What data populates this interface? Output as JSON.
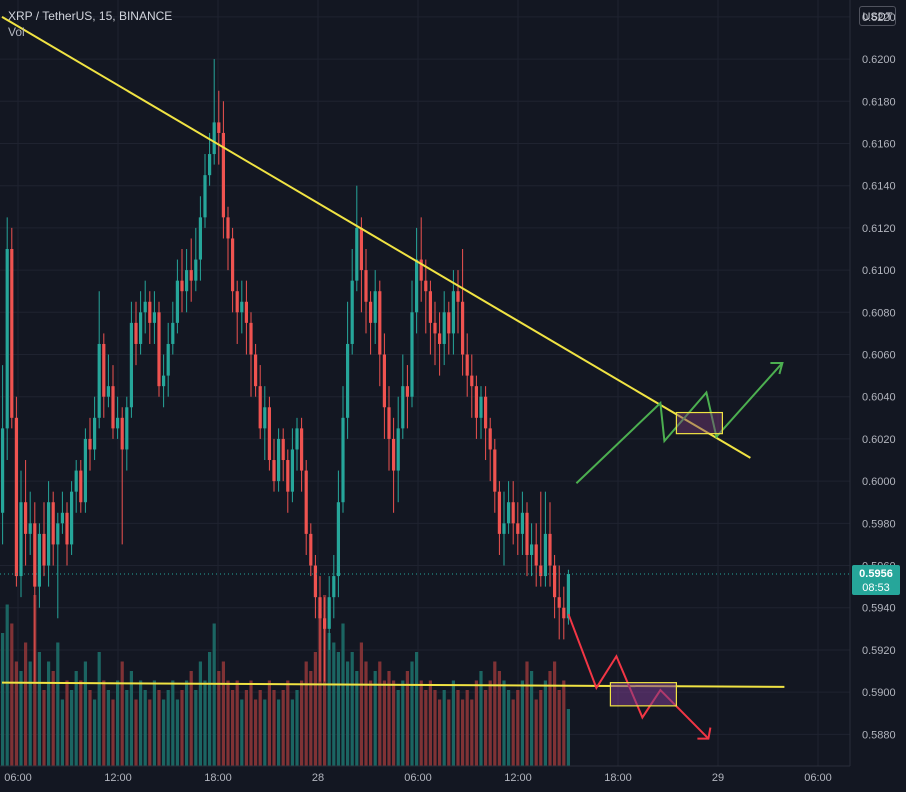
{
  "header": {
    "symbol": "XRP / TetherUS, 15, BINANCE",
    "indicator": "Vol"
  },
  "currency_label": "USDT",
  "current_price": {
    "value": "0.5956",
    "countdown": "08:53",
    "color": "#26a69a"
  },
  "colors": {
    "background": "#131722",
    "grid": "#1f2330",
    "up": "#26a69a",
    "down": "#ef5350",
    "up_vol": "#1d6e69",
    "down_vol": "#8c3537",
    "trendline": "#f0e343",
    "bull_path": "#4caf50",
    "bear_path": "#f23645",
    "axis_text": "#b2b5be"
  },
  "chart_data": {
    "type": "candlestick",
    "interval": "15",
    "y_axis": {
      "position": "right",
      "ylim": [
        0.5865,
        0.6228
      ],
      "ticks": [
        "0.5880",
        "0.5900",
        "0.5920",
        "0.5940",
        "0.5960",
        "0.5980",
        "0.6000",
        "0.6020",
        "0.6040",
        "0.6060",
        "0.6080",
        "0.6100",
        "0.6120",
        "0.6140",
        "0.6160",
        "0.6180",
        "0.6200",
        "0.6220"
      ]
    },
    "x_axis": {
      "tick_labels": [
        "06:00",
        "12:00",
        "18:00",
        "28",
        "06:00",
        "12:00",
        "18:00",
        "29",
        "06:00"
      ],
      "tick_hours": [
        0,
        6,
        12,
        18,
        24,
        30,
        36,
        42,
        48
      ]
    },
    "grid": true,
    "candles": [
      [
        0.6,
        0.5985,
        0.6165,
        0.597
      ],
      [
        0.5985,
        0.6025,
        0.6055,
        0.597
      ],
      [
        0.6025,
        0.611,
        0.6125,
        0.601
      ],
      [
        0.611,
        0.603,
        0.612,
        0.6025
      ],
      [
        0.603,
        0.5955,
        0.604,
        0.595
      ],
      [
        0.5955,
        0.599,
        0.6005,
        0.5945
      ],
      [
        0.599,
        0.5975,
        0.601,
        0.596
      ],
      [
        0.5975,
        0.598,
        0.5995,
        0.5965
      ],
      [
        0.598,
        0.595,
        0.599,
        0.5905
      ],
      [
        0.595,
        0.5975,
        0.598,
        0.594
      ],
      [
        0.5975,
        0.596,
        0.599,
        0.5955
      ],
      [
        0.596,
        0.599,
        0.6,
        0.595
      ],
      [
        0.599,
        0.597,
        0.5995,
        0.596
      ],
      [
        0.597,
        0.598,
        0.5985,
        0.5935
      ],
      [
        0.598,
        0.5985,
        0.5995,
        0.5975
      ],
      [
        0.5985,
        0.597,
        0.599,
        0.596
      ],
      [
        0.597,
        0.5995,
        0.6,
        0.5965
      ],
      [
        0.5995,
        0.6005,
        0.601,
        0.5985
      ],
      [
        0.6005,
        0.599,
        0.601,
        0.5985
      ],
      [
        0.599,
        0.602,
        0.6025,
        0.5985
      ],
      [
        0.602,
        0.6015,
        0.603,
        0.6005
      ],
      [
        0.6015,
        0.603,
        0.604,
        0.601
      ],
      [
        0.603,
        0.6065,
        0.609,
        0.6025
      ],
      [
        0.6065,
        0.604,
        0.607,
        0.603
      ],
      [
        0.604,
        0.6045,
        0.606,
        0.6035
      ],
      [
        0.6045,
        0.6025,
        0.6055,
        0.602
      ],
      [
        0.6025,
        0.603,
        0.604,
        0.602
      ],
      [
        0.603,
        0.6015,
        0.6035,
        0.597
      ],
      [
        0.6015,
        0.6035,
        0.604,
        0.6005
      ],
      [
        0.6035,
        0.6075,
        0.6085,
        0.603
      ],
      [
        0.6075,
        0.6065,
        0.6085,
        0.6055
      ],
      [
        0.6065,
        0.608,
        0.609,
        0.606
      ],
      [
        0.608,
        0.6085,
        0.6095,
        0.607
      ],
      [
        0.6085,
        0.6075,
        0.609,
        0.6065
      ],
      [
        0.6075,
        0.608,
        0.609,
        0.6065
      ],
      [
        0.608,
        0.6045,
        0.6085,
        0.604
      ],
      [
        0.6045,
        0.605,
        0.606,
        0.6035
      ],
      [
        0.605,
        0.6065,
        0.6075,
        0.604
      ],
      [
        0.6065,
        0.6075,
        0.6085,
        0.606
      ],
      [
        0.6075,
        0.6095,
        0.6105,
        0.607
      ],
      [
        0.6095,
        0.609,
        0.611,
        0.608
      ],
      [
        0.609,
        0.61,
        0.611,
        0.608
      ],
      [
        0.61,
        0.6095,
        0.6115,
        0.6085
      ],
      [
        0.6095,
        0.6105,
        0.612,
        0.609
      ],
      [
        0.6105,
        0.6125,
        0.6135,
        0.6095
      ],
      [
        0.6125,
        0.6145,
        0.6155,
        0.612
      ],
      [
        0.6145,
        0.6155,
        0.6165,
        0.614
      ],
      [
        0.6155,
        0.617,
        0.62,
        0.615
      ],
      [
        0.617,
        0.6165,
        0.6185,
        0.615
      ],
      [
        0.6165,
        0.6125,
        0.618,
        0.6115
      ],
      [
        0.6125,
        0.6115,
        0.613,
        0.61
      ],
      [
        0.6115,
        0.609,
        0.612,
        0.608
      ],
      [
        0.609,
        0.608,
        0.6095,
        0.6065
      ],
      [
        0.608,
        0.6085,
        0.6095,
        0.607
      ],
      [
        0.6085,
        0.6075,
        0.6095,
        0.606
      ],
      [
        0.6075,
        0.606,
        0.608,
        0.604
      ],
      [
        0.606,
        0.6045,
        0.6065,
        0.604
      ],
      [
        0.6045,
        0.6025,
        0.6055,
        0.602
      ],
      [
        0.6025,
        0.6035,
        0.6045,
        0.601
      ],
      [
        0.6035,
        0.601,
        0.604,
        0.6005
      ],
      [
        0.601,
        0.6,
        0.602,
        0.5995
      ],
      [
        0.6,
        0.602,
        0.6025,
        0.5995
      ],
      [
        0.602,
        0.601,
        0.6025,
        0.6
      ],
      [
        0.601,
        0.5995,
        0.6015,
        0.5985
      ],
      [
        0.5995,
        0.6015,
        0.6025,
        0.599
      ],
      [
        0.6015,
        0.6025,
        0.603,
        0.6005
      ],
      [
        0.6025,
        0.6005,
        0.603,
        0.5995
      ],
      [
        0.6005,
        0.5975,
        0.601,
        0.5965
      ],
      [
        0.5975,
        0.596,
        0.598,
        0.5955
      ],
      [
        0.596,
        0.5945,
        0.5965,
        0.5935
      ],
      [
        0.5945,
        0.5935,
        0.5955,
        0.5905
      ],
      [
        0.5935,
        0.593,
        0.5945,
        0.5905
      ],
      [
        0.593,
        0.5945,
        0.5955,
        0.592
      ],
      [
        0.5945,
        0.5955,
        0.5965,
        0.5935
      ],
      [
        0.5955,
        0.599,
        0.6005,
        0.5945
      ],
      [
        0.599,
        0.603,
        0.6045,
        0.5985
      ],
      [
        0.603,
        0.6065,
        0.6085,
        0.602
      ],
      [
        0.6065,
        0.6095,
        0.611,
        0.606
      ],
      [
        0.6095,
        0.612,
        0.614,
        0.609
      ],
      [
        0.612,
        0.61,
        0.6125,
        0.608
      ],
      [
        0.61,
        0.6085,
        0.611,
        0.607
      ],
      [
        0.6085,
        0.6075,
        0.609,
        0.606
      ],
      [
        0.6075,
        0.609,
        0.61,
        0.6065
      ],
      [
        0.609,
        0.606,
        0.6095,
        0.6045
      ],
      [
        0.606,
        0.6035,
        0.607,
        0.602
      ],
      [
        0.6035,
        0.602,
        0.6045,
        0.6005
      ],
      [
        0.602,
        0.6005,
        0.603,
        0.5985
      ],
      [
        0.6005,
        0.6025,
        0.604,
        0.599
      ],
      [
        0.6025,
        0.6045,
        0.606,
        0.602
      ],
      [
        0.6045,
        0.604,
        0.6055,
        0.6025
      ],
      [
        0.604,
        0.608,
        0.6095,
        0.6035
      ],
      [
        0.608,
        0.6105,
        0.612,
        0.607
      ],
      [
        0.6105,
        0.6095,
        0.6125,
        0.6085
      ],
      [
        0.6095,
        0.609,
        0.6105,
        0.607
      ],
      [
        0.609,
        0.6075,
        0.6095,
        0.606
      ],
      [
        0.6075,
        0.607,
        0.6085,
        0.6055
      ],
      [
        0.607,
        0.6065,
        0.608,
        0.605
      ],
      [
        0.6065,
        0.608,
        0.609,
        0.6055
      ],
      [
        0.608,
        0.607,
        0.6085,
        0.606
      ],
      [
        0.607,
        0.609,
        0.61,
        0.606
      ],
      [
        0.609,
        0.6085,
        0.61,
        0.607
      ],
      [
        0.6085,
        0.606,
        0.611,
        0.605
      ],
      [
        0.606,
        0.605,
        0.607,
        0.604
      ],
      [
        0.605,
        0.6045,
        0.606,
        0.603
      ],
      [
        0.6045,
        0.603,
        0.605,
        0.602
      ],
      [
        0.603,
        0.604,
        0.6045,
        0.602
      ],
      [
        0.604,
        0.6025,
        0.6045,
        0.601
      ],
      [
        0.6025,
        0.6015,
        0.603,
        0.6
      ],
      [
        0.6015,
        0.5995,
        0.602,
        0.5985
      ],
      [
        0.5995,
        0.5975,
        0.6,
        0.5965
      ],
      [
        0.5975,
        0.598,
        0.5995,
        0.596
      ],
      [
        0.598,
        0.599,
        0.6,
        0.5975
      ],
      [
        0.599,
        0.598,
        0.6,
        0.597
      ],
      [
        0.598,
        0.5975,
        0.599,
        0.5965
      ],
      [
        0.5975,
        0.5985,
        0.5995,
        0.5965
      ],
      [
        0.5985,
        0.5965,
        0.599,
        0.5955
      ],
      [
        0.5965,
        0.597,
        0.598,
        0.5955
      ],
      [
        0.597,
        0.596,
        0.598,
        0.595
      ],
      [
        0.596,
        0.5955,
        0.5995,
        0.595
      ],
      [
        0.5955,
        0.5975,
        0.5995,
        0.595
      ],
      [
        0.5975,
        0.596,
        0.599,
        0.595
      ],
      [
        0.596,
        0.5945,
        0.5965,
        0.5935
      ],
      [
        0.5945,
        0.594,
        0.596,
        0.5925
      ],
      [
        0.594,
        0.5935,
        0.595,
        0.5925
      ],
      [
        0.5935,
        0.5956,
        0.5958,
        0.5932
      ]
    ],
    "volume_note": "volume bars colored by candle direction",
    "volumes": [
      0.6,
      0.7,
      0.85,
      0.75,
      0.55,
      0.5,
      0.65,
      0.55,
      0.9,
      0.6,
      0.4,
      0.55,
      0.5,
      0.65,
      0.35,
      0.45,
      0.4,
      0.5,
      0.45,
      0.55,
      0.4,
      0.35,
      0.6,
      0.45,
      0.4,
      0.35,
      0.45,
      0.55,
      0.4,
      0.5,
      0.35,
      0.45,
      0.4,
      0.35,
      0.45,
      0.4,
      0.35,
      0.4,
      0.45,
      0.35,
      0.4,
      0.45,
      0.5,
      0.4,
      0.55,
      0.45,
      0.6,
      0.75,
      0.5,
      0.55,
      0.45,
      0.4,
      0.45,
      0.35,
      0.4,
      0.45,
      0.35,
      0.4,
      0.35,
      0.45,
      0.4,
      0.35,
      0.4,
      0.45,
      0.35,
      0.4,
      0.45,
      0.55,
      0.5,
      0.6,
      0.8,
      0.9,
      0.7,
      0.65,
      0.6,
      0.75,
      0.55,
      0.6,
      0.5,
      0.65,
      0.55,
      0.45,
      0.5,
      0.55,
      0.45,
      0.5,
      0.45,
      0.4,
      0.45,
      0.5,
      0.55,
      0.6,
      0.45,
      0.4,
      0.45,
      0.4,
      0.35,
      0.4,
      0.35,
      0.45,
      0.4,
      0.35,
      0.4,
      0.35,
      0.45,
      0.5,
      0.4,
      0.45,
      0.55,
      0.5,
      0.45,
      0.4,
      0.35,
      0.4,
      0.45,
      0.55,
      0.5,
      0.35,
      0.4,
      0.45,
      0.5,
      0.55,
      0.4,
      0.45,
      0.3
    ],
    "drawings": {
      "upper_trendline": {
        "from": [
          "candle",
          0,
          0.622
        ],
        "to_price_at_end": 0.6011
      },
      "lower_trendline": {
        "price_start": 0.59045,
        "price_end": 0.59025
      },
      "bull_path": [
        0.5999,
        0.6037,
        0.6019,
        0.6042,
        0.6021,
        0.6056
      ],
      "bear_path": [
        0.5937,
        0.5902,
        0.5917,
        0.5888,
        0.5901,
        0.5878
      ],
      "bull_box": {
        "price_top": 0.60325,
        "price_bottom": 0.60225
      },
      "bear_box": {
        "price_top": 0.59045,
        "price_bottom": 0.58935
      }
    }
  }
}
